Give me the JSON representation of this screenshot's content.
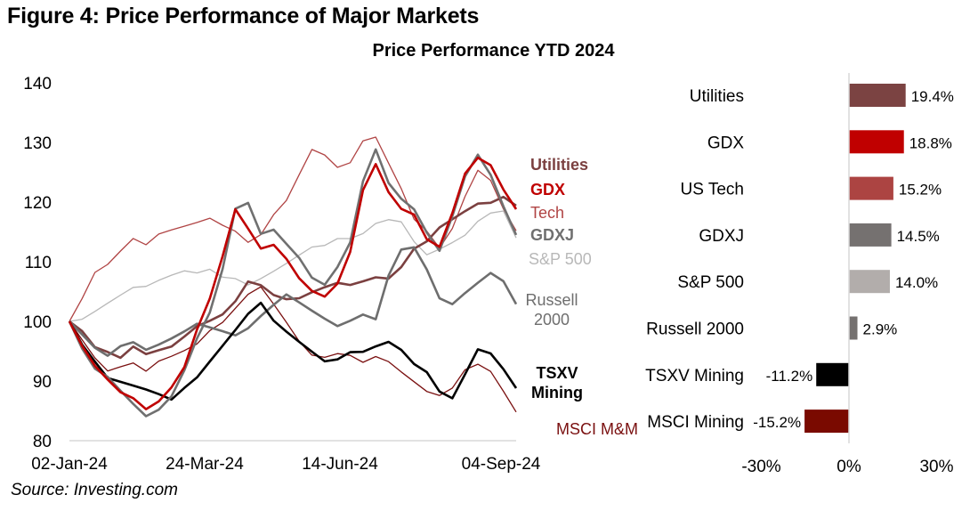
{
  "figure_title": "Figure 4: Price Performance of Major Markets",
  "source": "Source: Investing.com",
  "chart_data": [
    {
      "type": "line",
      "title": "",
      "xlabel": "",
      "ylabel": "",
      "ylim": [
        80,
        140
      ],
      "yticks": [
        80,
        90,
        100,
        110,
        120,
        130,
        140
      ],
      "ytick_labels": [
        "80",
        "90",
        "100",
        "110",
        "120",
        "130",
        "140"
      ],
      "xticks": [
        "02-Jan-24",
        "24-Mar-24",
        "14-Jun-24",
        "04-Sep-24"
      ],
      "grid": false,
      "legend": "right (inline labels at line ends)",
      "x_note": "approximately weekly samples from 02-Jan-24 to mid-Sep-24 (36 points)",
      "series": [
        {
          "name": "Utilities",
          "label": "Utilities",
          "color": "#7b4040",
          "bold": true,
          "values": [
            100,
            98,
            95,
            94,
            93,
            95,
            94,
            95,
            96,
            98,
            100,
            101,
            102,
            104,
            107,
            106,
            104,
            103,
            103,
            104,
            105,
            106,
            106,
            107,
            108,
            108,
            110,
            113,
            114,
            116,
            117,
            118,
            119,
            119,
            120,
            119.4
          ]
        },
        {
          "name": "GDX",
          "label": "GDX",
          "color": "#c00000",
          "bold": true,
          "values": [
            100,
            96,
            93,
            91,
            89,
            88,
            86,
            87,
            89,
            92,
            98,
            103,
            110,
            118,
            115,
            112,
            113,
            111,
            108,
            106,
            105,
            107,
            112,
            122,
            126,
            121,
            118,
            117,
            113,
            112,
            118,
            125,
            128,
            127,
            123,
            118.8
          ]
        },
        {
          "name": "US Tech",
          "label": "Tech",
          "color": "#b04444",
          "bold": false,
          "values": [
            100,
            104,
            108,
            109,
            111,
            113,
            112,
            114,
            115,
            116,
            117,
            118,
            117,
            116,
            114,
            115,
            118,
            120,
            124,
            128,
            127,
            125,
            126,
            130,
            131,
            127,
            123,
            118,
            116,
            113,
            116,
            121,
            125,
            123,
            118,
            115.2
          ]
        },
        {
          "name": "GDXJ",
          "label": "GDXJ",
          "color": "#707070",
          "bold": true,
          "values": [
            100,
            95,
            92,
            91,
            89,
            87,
            85,
            86,
            88,
            92,
            97,
            101,
            108,
            118,
            119,
            114,
            115,
            113,
            111,
            108,
            107,
            110,
            114,
            124,
            129,
            123,
            120,
            118,
            114,
            111,
            117,
            124,
            128,
            125,
            120,
            114.5
          ]
        },
        {
          "name": "S&P 500",
          "label": "S&P 500",
          "color": "#b8b8b8",
          "bold": false,
          "values": [
            100,
            101,
            102,
            103,
            104,
            105,
            105,
            106,
            107,
            108,
            108,
            109,
            108,
            108,
            107,
            108,
            109,
            110,
            111,
            112,
            112,
            113,
            113,
            114,
            116,
            117,
            117,
            114,
            112,
            113,
            114,
            115,
            117,
            118,
            118,
            114.0
          ]
        },
        {
          "name": "Russell 2000",
          "label": "Russell\n2000",
          "color": "#6e6e6e",
          "bold": true,
          "values": [
            100,
            97,
            95,
            94,
            96,
            97,
            96,
            97,
            98,
            99,
            100,
            99,
            98,
            97,
            98,
            100,
            102,
            104,
            103,
            102,
            101,
            100,
            101,
            102,
            101,
            108,
            112,
            112,
            108,
            103,
            102,
            104,
            106,
            108,
            107,
            102.9
          ]
        },
        {
          "name": "TSXV Mining",
          "label": "TSXV\nMining",
          "color": "#000000",
          "bold": true,
          "values": [
            100,
            97,
            94,
            91,
            90,
            89,
            88,
            87,
            86,
            88,
            90,
            93,
            96,
            99,
            102,
            104,
            101,
            99,
            97,
            95,
            93,
            93,
            94,
            94,
            95,
            96,
            95,
            93,
            92,
            89,
            88,
            92,
            96,
            95,
            92,
            88.8
          ]
        },
        {
          "name": "MSCI M&M",
          "label": "MSCI M&M",
          "color": "#7a1010",
          "bold": false,
          "values": [
            100,
            96,
            93,
            91,
            92,
            93,
            92,
            94,
            95,
            96,
            97,
            99,
            100,
            102,
            104,
            105,
            102,
            99,
            96,
            94,
            94,
            95,
            95,
            94,
            95,
            94,
            92,
            90,
            88,
            87,
            88,
            91,
            92,
            91,
            88,
            84.8
          ]
        }
      ]
    },
    {
      "type": "bar",
      "orientation": "horizontal",
      "title": "Price Performance YTD 2024",
      "categories": [
        "Utilities",
        "GDX",
        "US Tech",
        "GDXJ",
        "S&P 500",
        "Russell 2000",
        "TSXV Mining",
        "MSCI Mining"
      ],
      "values": [
        19.4,
        18.8,
        15.2,
        14.5,
        14.0,
        2.9,
        -11.2,
        -15.2
      ],
      "value_labels": [
        "19.4%",
        "18.8%",
        "15.2%",
        "14.5%",
        "14.0%",
        "2.9%",
        "-11.2%",
        "-15.2%"
      ],
      "colors": [
        "#7b4342",
        "#c00000",
        "#ac4442",
        "#757170",
        "#b2adab",
        "#757170",
        "#000000",
        "#7a0a00"
      ],
      "xlim": [
        -30,
        30
      ],
      "xticks": [
        -30,
        0,
        30
      ],
      "xtick_labels": [
        "-30%",
        "0%",
        "30%"
      ],
      "unit": "%"
    }
  ],
  "chart_title": "Price Performance YTD 2024"
}
